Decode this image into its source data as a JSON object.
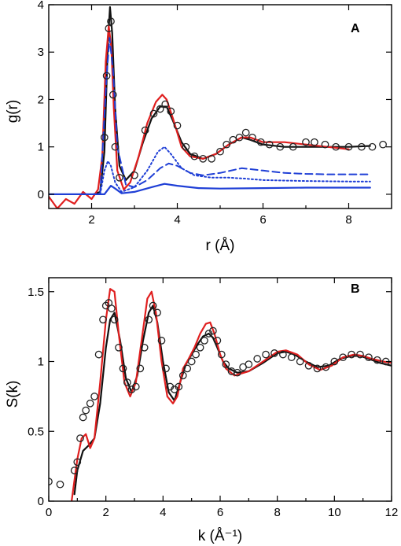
{
  "colors": {
    "black": "#111111",
    "red": "#e01f1f",
    "blue": "#1f3fd6",
    "marker": "#222222"
  },
  "chart_data": [
    {
      "type": "line",
      "panel_label": "A",
      "xlabel": "r (Å)",
      "ylabel": "g(r)",
      "xlim": [
        1,
        9
      ],
      "ylim": [
        -0.3,
        4
      ],
      "xticks": [
        2,
        4,
        6,
        8
      ],
      "yticks": [
        0,
        1,
        2,
        3,
        4
      ],
      "xtick_labels": [
        "2",
        "4",
        "6",
        "8"
      ],
      "ytick_labels": [
        "0",
        "1",
        "2",
        "3",
        "4"
      ],
      "grid": false,
      "series": [
        {
          "style": "line",
          "color": "black",
          "dash": "solid",
          "x": [
            2.05,
            2.2,
            2.3,
            2.38,
            2.43,
            2.48,
            2.55,
            2.65,
            2.8,
            3.0,
            3.2,
            3.4,
            3.6,
            3.75,
            3.9,
            4.1,
            4.3,
            4.6,
            4.9,
            5.2,
            5.5,
            5.7,
            6.0,
            6.5,
            7.0,
            7.5,
            8.0,
            8.5
          ],
          "y": [
            0.0,
            0.05,
            0.9,
            3.2,
            3.95,
            3.4,
            1.8,
            0.6,
            0.3,
            0.5,
            1.1,
            1.6,
            1.85,
            1.85,
            1.55,
            1.1,
            0.85,
            0.75,
            0.85,
            1.05,
            1.2,
            1.15,
            1.05,
            1.0,
            1.0,
            1.0,
            1.0,
            1.02
          ]
        },
        {
          "style": "line",
          "color": "red",
          "dash": "solid",
          "x": [
            1.0,
            1.2,
            1.4,
            1.6,
            1.8,
            2.0,
            2.15,
            2.25,
            2.33,
            2.4,
            2.46,
            2.52,
            2.6,
            2.75,
            2.9,
            3.1,
            3.3,
            3.5,
            3.65,
            3.75,
            3.9,
            4.1,
            4.3,
            4.6,
            4.9,
            5.2,
            5.5,
            5.7,
            6.0,
            6.5,
            7.0,
            7.5,
            8.0
          ],
          "y": [
            -0.05,
            -0.3,
            -0.1,
            -0.2,
            0.05,
            -0.1,
            0.1,
            0.8,
            2.8,
            3.55,
            3.1,
            1.8,
            0.5,
            0.1,
            0.25,
            0.8,
            1.5,
            1.95,
            2.1,
            2.0,
            1.6,
            1.0,
            0.8,
            0.75,
            0.85,
            1.05,
            1.2,
            1.2,
            1.1,
            1.1,
            1.05,
            1.0,
            0.95
          ]
        },
        {
          "style": "line",
          "color": "blue",
          "dash": "solid",
          "x": [
            1.0,
            2.0,
            2.3,
            2.45,
            2.55,
            2.7,
            3.0,
            3.4,
            3.7,
            4.0,
            4.5,
            5.0,
            6.0,
            7.0,
            8.0,
            8.5
          ],
          "y": [
            0.0,
            0.0,
            0.0,
            0.18,
            0.12,
            0.02,
            0.05,
            0.15,
            0.22,
            0.18,
            0.13,
            0.12,
            0.13,
            0.14,
            0.14,
            0.14
          ]
        },
        {
          "style": "line",
          "color": "blue",
          "dash": "dashed",
          "x": [
            2.2,
            2.35,
            2.42,
            2.5,
            2.6,
            2.8,
            3.0,
            3.3,
            3.6,
            3.8,
            4.0,
            4.3,
            4.6,
            5.0,
            5.5,
            6.0,
            6.5,
            7.0,
            7.5,
            8.0,
            8.5
          ],
          "y": [
            0.0,
            2.5,
            3.3,
            2.6,
            1.0,
            0.2,
            0.15,
            0.3,
            0.55,
            0.65,
            0.6,
            0.45,
            0.4,
            0.45,
            0.55,
            0.5,
            0.45,
            0.43,
            0.42,
            0.42,
            0.42
          ]
        },
        {
          "style": "line",
          "color": "blue",
          "dash": "dotted",
          "x": [
            2.2,
            2.3,
            2.38,
            2.45,
            2.55,
            2.7,
            3.0,
            3.3,
            3.55,
            3.7,
            3.85,
            4.1,
            4.4,
            4.8,
            5.2,
            5.6,
            6.0,
            7.0,
            8.0,
            8.5
          ],
          "y": [
            0.0,
            0.5,
            0.7,
            0.6,
            0.25,
            0.05,
            0.15,
            0.5,
            0.9,
            1.0,
            0.85,
            0.55,
            0.4,
            0.35,
            0.35,
            0.33,
            0.3,
            0.28,
            0.27,
            0.27
          ]
        },
        {
          "style": "markers",
          "color": "marker",
          "x": [
            2.3,
            2.35,
            2.4,
            2.45,
            2.5,
            2.55,
            2.65,
            3.0,
            3.25,
            3.45,
            3.6,
            3.72,
            3.85,
            4.0,
            4.2,
            4.4,
            4.6,
            4.8,
            5.0,
            5.15,
            5.3,
            5.45,
            5.6,
            5.75,
            5.95,
            6.15,
            6.4,
            6.7,
            7.0,
            7.2,
            7.45,
            7.7,
            8.0,
            8.3,
            8.55,
            8.8
          ],
          "y": [
            1.2,
            2.5,
            3.5,
            3.65,
            2.1,
            1.0,
            0.35,
            0.4,
            1.35,
            1.7,
            1.8,
            1.9,
            1.75,
            1.45,
            1.0,
            0.8,
            0.75,
            0.75,
            0.9,
            1.05,
            1.15,
            1.2,
            1.3,
            1.2,
            1.1,
            1.05,
            1.0,
            1.0,
            1.1,
            1.1,
            1.05,
            1.0,
            1.0,
            1.0,
            1.0,
            1.05
          ]
        }
      ]
    },
    {
      "type": "line",
      "panel_label": "B",
      "xlabel": "k (Å⁻¹)",
      "ylabel": "S(k)",
      "xlim": [
        0,
        12
      ],
      "ylim": [
        0,
        1.6
      ],
      "xticks": [
        0,
        2,
        4,
        6,
        8,
        10,
        12
      ],
      "yticks": [
        0,
        0.5,
        1,
        1.5
      ],
      "xtick_labels": [
        "0",
        "2",
        "4",
        "6",
        "8",
        "10",
        "12"
      ],
      "ytick_labels": [
        "0",
        "0.5",
        "1",
        "1.5"
      ],
      "grid": false,
      "series": [
        {
          "style": "line",
          "color": "black",
          "dash": "solid",
          "x": [
            0.9,
            1.0,
            1.2,
            1.4,
            1.6,
            1.8,
            2.0,
            2.15,
            2.3,
            2.5,
            2.7,
            2.9,
            3.1,
            3.3,
            3.5,
            3.65,
            3.8,
            4.0,
            4.2,
            4.4,
            4.6,
            4.8,
            5.0,
            5.2,
            5.4,
            5.6,
            5.75,
            5.9,
            6.1,
            6.3,
            6.6,
            7.0,
            7.5,
            8.0,
            8.3,
            8.6,
            9.0,
            9.4,
            9.8,
            10.2,
            10.6,
            10.9,
            11.2,
            11.6,
            12.0
          ],
          "y": [
            0.05,
            0.22,
            0.36,
            0.4,
            0.45,
            0.7,
            1.1,
            1.3,
            1.35,
            1.15,
            0.88,
            0.78,
            0.9,
            1.15,
            1.35,
            1.4,
            1.28,
            1.0,
            0.78,
            0.72,
            0.85,
            0.98,
            1.05,
            1.12,
            1.18,
            1.2,
            1.17,
            1.1,
            1.0,
            0.95,
            0.92,
            0.93,
            0.99,
            1.06,
            1.07,
            1.05,
            1.0,
            0.96,
            0.97,
            1.02,
            1.04,
            1.04,
            1.02,
            0.99,
            0.97
          ]
        },
        {
          "style": "line",
          "color": "red",
          "dash": "solid",
          "x": [
            0.8,
            0.9,
            1.0,
            1.15,
            1.3,
            1.45,
            1.6,
            1.8,
            2.0,
            2.15,
            2.3,
            2.45,
            2.65,
            2.85,
            3.05,
            3.25,
            3.45,
            3.6,
            3.75,
            3.95,
            4.15,
            4.35,
            4.5,
            4.7,
            4.9,
            5.1,
            5.3,
            5.5,
            5.65,
            5.8,
            6.0,
            6.2,
            6.5,
            7.0,
            7.5,
            8.0,
            8.3,
            8.7,
            9.1,
            9.5,
            9.9,
            10.3,
            10.7,
            11.0,
            11.3,
            11.7,
            12.0
          ],
          "y": [
            0.0,
            0.15,
            0.3,
            0.45,
            0.48,
            0.38,
            0.45,
            0.85,
            1.3,
            1.52,
            1.5,
            1.2,
            0.85,
            0.75,
            0.85,
            1.15,
            1.45,
            1.5,
            1.35,
            1.0,
            0.75,
            0.7,
            0.75,
            0.95,
            1.02,
            1.1,
            1.2,
            1.27,
            1.28,
            1.2,
            1.05,
            0.95,
            0.9,
            0.93,
            1.0,
            1.07,
            1.08,
            1.05,
            0.98,
            0.94,
            0.97,
            1.03,
            1.05,
            1.04,
            1.02,
            1.0,
            0.99
          ]
        },
        {
          "style": "markers",
          "color": "marker",
          "x": [
            0.0,
            0.4,
            0.9,
            1.0,
            1.1,
            1.2,
            1.3,
            1.45,
            1.6,
            1.75,
            1.9,
            2.0,
            2.1,
            2.2,
            2.3,
            2.45,
            2.6,
            2.75,
            2.9,
            3.05,
            3.2,
            3.35,
            3.5,
            3.65,
            3.8,
            3.95,
            4.1,
            4.25,
            4.4,
            4.55,
            4.7,
            4.85,
            5.0,
            5.15,
            5.3,
            5.45,
            5.6,
            5.75,
            5.9,
            6.05,
            6.2,
            6.4,
            6.6,
            6.8,
            7.0,
            7.3,
            7.6,
            7.9,
            8.2,
            8.5,
            8.8,
            9.1,
            9.4,
            9.7,
            10.0,
            10.3,
            10.6,
            10.9,
            11.2,
            11.5,
            11.8
          ],
          "y": [
            0.14,
            0.12,
            0.22,
            0.28,
            0.45,
            0.6,
            0.65,
            0.7,
            0.75,
            1.05,
            1.3,
            1.4,
            1.42,
            1.38,
            1.3,
            1.1,
            0.95,
            0.85,
            0.8,
            0.82,
            0.95,
            1.1,
            1.3,
            1.4,
            1.35,
            1.15,
            0.95,
            0.82,
            0.8,
            0.82,
            0.9,
            0.95,
            1.0,
            1.05,
            1.1,
            1.15,
            1.2,
            1.22,
            1.15,
            1.05,
            0.98,
            0.93,
            0.92,
            0.96,
            0.98,
            1.02,
            1.05,
            1.06,
            1.05,
            1.03,
            1.0,
            0.97,
            0.95,
            0.96,
            1.0,
            1.03,
            1.05,
            1.05,
            1.03,
            1.01,
            1.0
          ]
        }
      ]
    }
  ]
}
